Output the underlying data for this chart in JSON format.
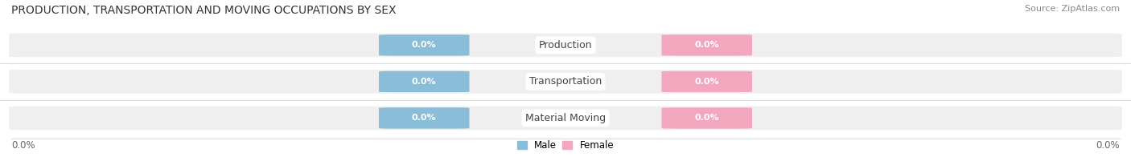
{
  "title": "PRODUCTION, TRANSPORTATION AND MOVING OCCUPATIONS BY SEX",
  "source": "Source: ZipAtlas.com",
  "categories": [
    "Production",
    "Transportation",
    "Material Moving"
  ],
  "male_values": [
    0.0,
    0.0,
    0.0
  ],
  "female_values": [
    0.0,
    0.0,
    0.0
  ],
  "male_color": "#89bdd8",
  "female_color": "#f2a7be",
  "bar_bg_color": "#efefef",
  "value_text_color": "#ffffff",
  "category_text_color": "#444444",
  "title_color": "#333333",
  "source_color": "#888888",
  "tick_color": "#666666",
  "axis_label_left": "0.0%",
  "axis_label_right": "0.0%",
  "background_color": "#ffffff",
  "sep_line_color": "#dddddd",
  "title_fontsize": 10,
  "source_fontsize": 8,
  "tick_fontsize": 8.5,
  "legend_fontsize": 8.5,
  "value_fontsize": 8,
  "category_fontsize": 9
}
